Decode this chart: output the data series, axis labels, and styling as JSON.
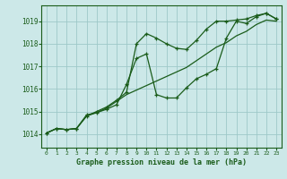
{
  "title": "Graphe pression niveau de la mer (hPa)",
  "background_color": "#cce8e8",
  "grid_color": "#9ec8c8",
  "line_color": "#1a5c1a",
  "xlim": [
    -0.5,
    23.5
  ],
  "ylim": [
    1013.4,
    1019.7
  ],
  "xticks": [
    0,
    1,
    2,
    3,
    4,
    5,
    6,
    7,
    8,
    9,
    10,
    11,
    12,
    13,
    14,
    15,
    16,
    17,
    18,
    19,
    20,
    21,
    22,
    23
  ],
  "yticks": [
    1014,
    1015,
    1016,
    1017,
    1018,
    1019
  ],
  "x": [
    0,
    1,
    2,
    3,
    4,
    5,
    6,
    7,
    8,
    9,
    10,
    11,
    12,
    13,
    14,
    15,
    16,
    17,
    18,
    19,
    20,
    21,
    22,
    23
  ],
  "line1": [
    1014.05,
    1014.25,
    1014.2,
    1014.25,
    1014.8,
    1015.0,
    1015.2,
    1015.5,
    1015.85,
    1018.0,
    1018.45,
    1018.25,
    1018.0,
    1017.8,
    1017.75,
    1018.15,
    1018.65,
    1019.0,
    1019.0,
    1019.05,
    1019.1,
    1019.25,
    1019.35,
    1019.1
  ],
  "line2": [
    1014.05,
    1014.25,
    1014.2,
    1014.25,
    1014.85,
    1014.95,
    1015.1,
    1015.3,
    1016.2,
    1017.35,
    1017.55,
    1015.75,
    1015.6,
    1015.6,
    1016.05,
    1016.45,
    1016.65,
    1016.9,
    1018.25,
    1019.0,
    1018.9,
    1019.2,
    1019.35,
    1019.1
  ],
  "line3": [
    1014.05,
    1014.25,
    1014.2,
    1014.25,
    1014.8,
    1014.95,
    1015.15,
    1015.45,
    1015.75,
    1015.95,
    1016.15,
    1016.35,
    1016.55,
    1016.75,
    1016.95,
    1017.25,
    1017.55,
    1017.85,
    1018.05,
    1018.35,
    1018.55,
    1018.85,
    1019.05,
    1019.0
  ]
}
